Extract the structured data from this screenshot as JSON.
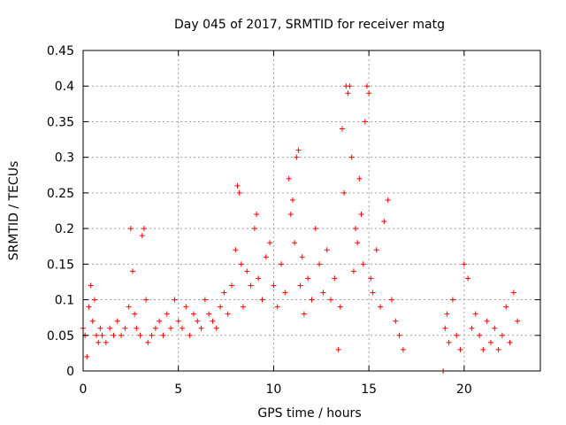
{
  "chart_data": {
    "type": "scatter",
    "title": "Day 045 of 2017, SRMTID for receiver matg",
    "xlabel": "GPS time / hours",
    "ylabel": "SRMTID / TECUs",
    "xlim": [
      0,
      24
    ],
    "ylim": [
      0,
      0.45
    ],
    "xticks": [
      0,
      5,
      10,
      15,
      20
    ],
    "xtick_labels": [
      "0",
      "5",
      "10",
      "15",
      "20"
    ],
    "yticks": [
      0,
      0.05,
      0.1,
      0.15,
      0.2,
      0.25,
      0.3,
      0.35,
      0.4,
      0.45
    ],
    "ytick_labels": [
      "0",
      "0.05",
      "0.1",
      "0.15",
      "0.2",
      "0.25",
      "0.3",
      "0.35",
      "0.4",
      "0.45"
    ],
    "grid": true,
    "marker": "plus",
    "color": "#ff0000",
    "series": [
      {
        "name": "SRMTID",
        "x": [
          0.0,
          0.1,
          0.2,
          0.3,
          0.4,
          0.5,
          0.6,
          0.7,
          0.8,
          0.9,
          1.0,
          1.2,
          1.4,
          1.6,
          1.8,
          2.0,
          2.2,
          2.4,
          2.5,
          2.6,
          2.7,
          2.8,
          3.0,
          3.1,
          3.2,
          3.3,
          3.4,
          3.6,
          3.8,
          4.0,
          4.2,
          4.4,
          4.6,
          4.8,
          5.0,
          5.2,
          5.4,
          5.6,
          5.8,
          6.0,
          6.2,
          6.4,
          6.6,
          6.8,
          7.0,
          7.2,
          7.4,
          7.6,
          7.8,
          8.0,
          8.1,
          8.2,
          8.3,
          8.4,
          8.6,
          8.8,
          9.0,
          9.1,
          9.2,
          9.4,
          9.6,
          9.8,
          10.0,
          10.2,
          10.4,
          10.6,
          10.8,
          10.9,
          11.0,
          11.1,
          11.2,
          11.3,
          11.4,
          11.5,
          11.6,
          11.8,
          12.0,
          12.2,
          12.4,
          12.6,
          12.8,
          13.0,
          13.2,
          13.4,
          13.5,
          13.6,
          13.7,
          13.8,
          13.9,
          14.0,
          14.1,
          14.2,
          14.3,
          14.4,
          14.5,
          14.6,
          14.7,
          14.8,
          14.9,
          15.0,
          15.1,
          15.2,
          15.4,
          15.6,
          15.8,
          16.0,
          16.2,
          16.4,
          16.6,
          16.8,
          18.9,
          19.0,
          19.1,
          19.2,
          19.4,
          19.6,
          19.8,
          20.0,
          20.2,
          20.4,
          20.6,
          20.8,
          21.0,
          21.2,
          21.4,
          21.6,
          21.8,
          22.0,
          22.2,
          22.4,
          22.6,
          22.8
        ],
        "y": [
          0.06,
          0.05,
          0.02,
          0.09,
          0.12,
          0.07,
          0.1,
          0.05,
          0.04,
          0.06,
          0.05,
          0.04,
          0.06,
          0.05,
          0.07,
          0.05,
          0.06,
          0.09,
          0.2,
          0.14,
          0.08,
          0.06,
          0.05,
          0.19,
          0.2,
          0.1,
          0.04,
          0.05,
          0.06,
          0.07,
          0.05,
          0.08,
          0.06,
          0.1,
          0.07,
          0.06,
          0.09,
          0.05,
          0.08,
          0.07,
          0.06,
          0.1,
          0.08,
          0.07,
          0.06,
          0.09,
          0.11,
          0.08,
          0.12,
          0.17,
          0.26,
          0.25,
          0.15,
          0.09,
          0.14,
          0.12,
          0.2,
          0.22,
          0.13,
          0.1,
          0.16,
          0.18,
          0.12,
          0.09,
          0.15,
          0.11,
          0.27,
          0.22,
          0.24,
          0.18,
          0.3,
          0.31,
          0.12,
          0.16,
          0.08,
          0.13,
          0.1,
          0.2,
          0.15,
          0.11,
          0.17,
          0.1,
          0.13,
          0.03,
          0.09,
          0.34,
          0.25,
          0.4,
          0.39,
          0.4,
          0.3,
          0.14,
          0.2,
          0.18,
          0.27,
          0.22,
          0.15,
          0.35,
          0.4,
          0.39,
          0.13,
          0.11,
          0.17,
          0.09,
          0.21,
          0.24,
          0.1,
          0.07,
          0.05,
          0.03,
          0.0,
          0.06,
          0.08,
          0.04,
          0.1,
          0.05,
          0.03,
          0.15,
          0.13,
          0.06,
          0.08,
          0.05,
          0.03,
          0.07,
          0.04,
          0.06,
          0.03,
          0.05,
          0.09,
          0.04,
          0.11,
          0.07
        ]
      }
    ]
  }
}
